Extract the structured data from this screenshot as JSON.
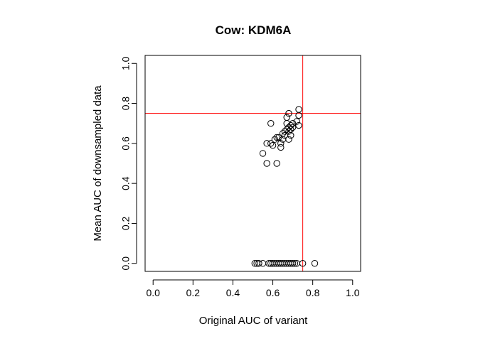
{
  "chart_data": {
    "type": "scatter",
    "title": "Cow: KDM6A",
    "xlabel": "Original AUC of variant",
    "ylabel": "Mean AUC of downsampled data",
    "xlim": [
      -0.04,
      1.04
    ],
    "ylim": [
      -0.04,
      1.04
    ],
    "xticks": [
      0.0,
      0.2,
      0.4,
      0.6,
      0.8,
      1.0
    ],
    "yticks": [
      0.0,
      0.2,
      0.4,
      0.6,
      0.8,
      1.0
    ],
    "xtick_labels": [
      "0.0",
      "0.2",
      "0.4",
      "0.6",
      "0.8",
      "1.0"
    ],
    "ytick_labels": [
      "0.0",
      "0.2",
      "0.4",
      "0.6",
      "0.8",
      "1.0"
    ],
    "reference_lines": {
      "vertical_x": 0.75,
      "horizontal_y": 0.75,
      "color": "#ff0000"
    },
    "marker": "open-circle",
    "grid": false,
    "points": [
      {
        "x": 0.51,
        "y": 0.0
      },
      {
        "x": 0.52,
        "y": 0.0
      },
      {
        "x": 0.53,
        "y": 0.0
      },
      {
        "x": 0.55,
        "y": 0.0
      },
      {
        "x": 0.58,
        "y": 0.0
      },
      {
        "x": 0.59,
        "y": 0.0
      },
      {
        "x": 0.6,
        "y": 0.0
      },
      {
        "x": 0.61,
        "y": 0.0
      },
      {
        "x": 0.62,
        "y": 0.0
      },
      {
        "x": 0.63,
        "y": 0.0
      },
      {
        "x": 0.64,
        "y": 0.0
      },
      {
        "x": 0.65,
        "y": 0.0
      },
      {
        "x": 0.66,
        "y": 0.0
      },
      {
        "x": 0.67,
        "y": 0.0
      },
      {
        "x": 0.68,
        "y": 0.0
      },
      {
        "x": 0.69,
        "y": 0.0
      },
      {
        "x": 0.7,
        "y": 0.0
      },
      {
        "x": 0.71,
        "y": 0.0
      },
      {
        "x": 0.72,
        "y": 0.0
      },
      {
        "x": 0.75,
        "y": 0.0
      },
      {
        "x": 0.81,
        "y": 0.0
      },
      {
        "x": 0.55,
        "y": 0.55
      },
      {
        "x": 0.57,
        "y": 0.5
      },
      {
        "x": 0.62,
        "y": 0.5
      },
      {
        "x": 0.57,
        "y": 0.6
      },
      {
        "x": 0.59,
        "y": 0.6
      },
      {
        "x": 0.6,
        "y": 0.59
      },
      {
        "x": 0.61,
        "y": 0.62
      },
      {
        "x": 0.62,
        "y": 0.63
      },
      {
        "x": 0.63,
        "y": 0.63
      },
      {
        "x": 0.64,
        "y": 0.58
      },
      {
        "x": 0.64,
        "y": 0.6
      },
      {
        "x": 0.65,
        "y": 0.65
      },
      {
        "x": 0.65,
        "y": 0.62
      },
      {
        "x": 0.66,
        "y": 0.66
      },
      {
        "x": 0.66,
        "y": 0.64
      },
      {
        "x": 0.67,
        "y": 0.67
      },
      {
        "x": 0.67,
        "y": 0.7
      },
      {
        "x": 0.68,
        "y": 0.66
      },
      {
        "x": 0.68,
        "y": 0.68
      },
      {
        "x": 0.68,
        "y": 0.62
      },
      {
        "x": 0.69,
        "y": 0.69
      },
      {
        "x": 0.69,
        "y": 0.67
      },
      {
        "x": 0.69,
        "y": 0.64
      },
      {
        "x": 0.7,
        "y": 0.7
      },
      {
        "x": 0.7,
        "y": 0.68
      },
      {
        "x": 0.72,
        "y": 0.71
      },
      {
        "x": 0.59,
        "y": 0.7
      },
      {
        "x": 0.67,
        "y": 0.73
      },
      {
        "x": 0.68,
        "y": 0.75
      },
      {
        "x": 0.73,
        "y": 0.69
      },
      {
        "x": 0.73,
        "y": 0.74
      },
      {
        "x": 0.73,
        "y": 0.77
      }
    ]
  }
}
